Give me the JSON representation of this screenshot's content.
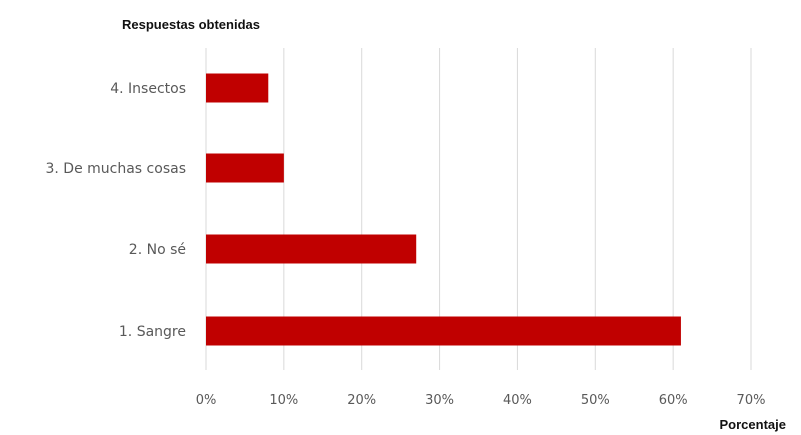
{
  "chart_data": {
    "type": "bar",
    "orientation": "horizontal",
    "ylabel": "Respuestas obtenidas",
    "xlabel": "Porcentaje",
    "categories": [
      "4. Insectos",
      "3. De muchas cosas",
      "2. No sé",
      "1. Sangre"
    ],
    "values": [
      8,
      10,
      27,
      61
    ],
    "xlim": [
      0,
      70
    ],
    "xticks": [
      0,
      10,
      20,
      30,
      40,
      50,
      60,
      70
    ],
    "tick_labels": [
      "0%",
      "10%",
      "20%",
      "30%",
      "40%",
      "50%",
      "60%",
      "70%"
    ],
    "grid": true,
    "legend": "none",
    "bar_color": "#c00000",
    "grid_color": "#d9d9d9"
  }
}
